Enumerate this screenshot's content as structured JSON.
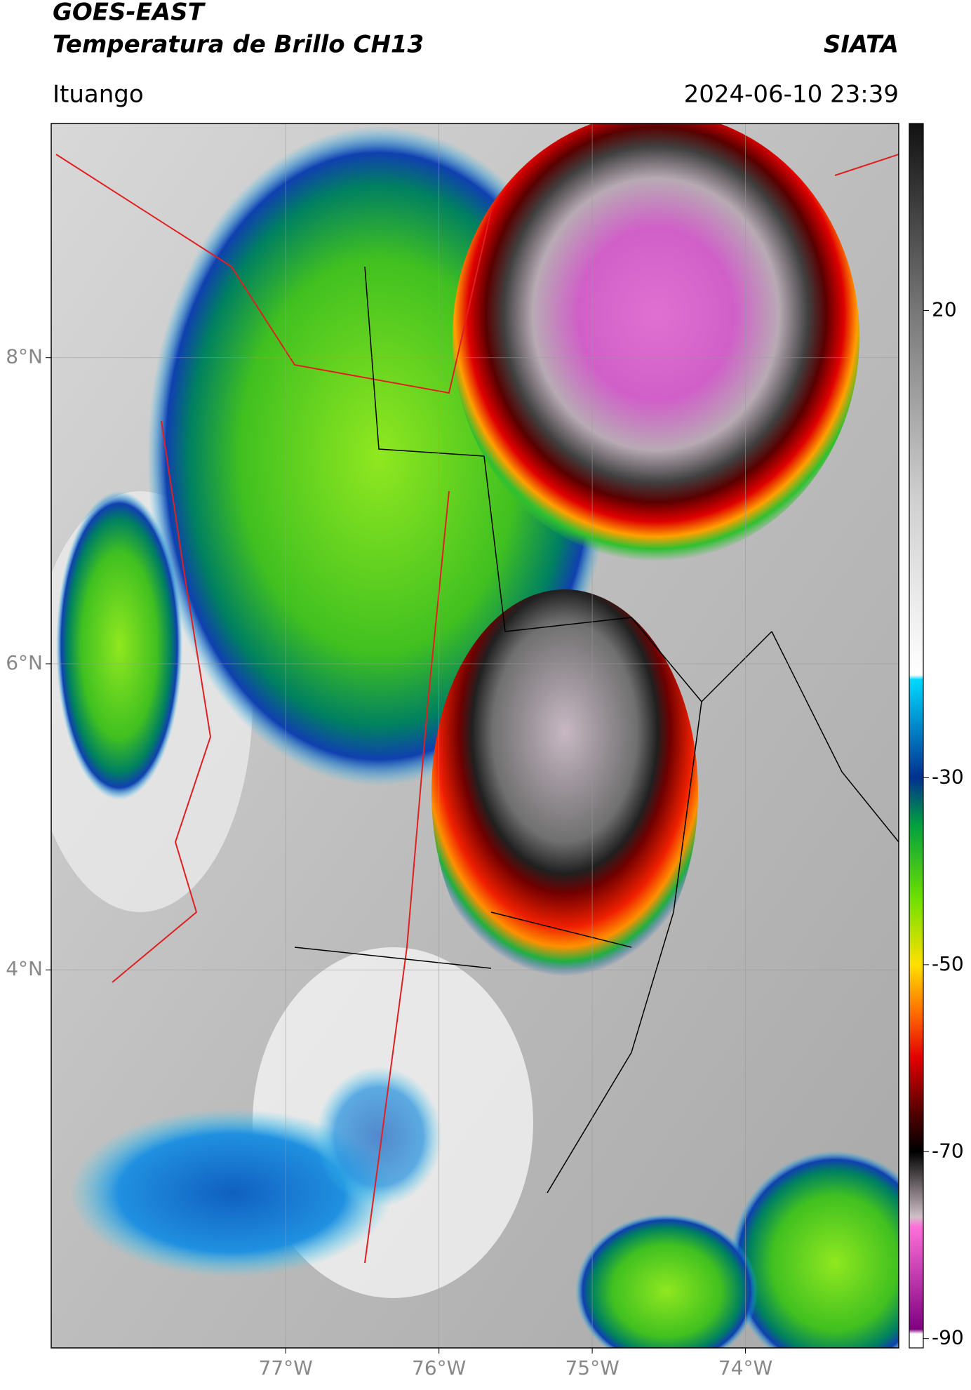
{
  "map": {
    "title": "GOES-EAST",
    "subtitle": "Temperatura de Brillo CH13",
    "source": "SIATA",
    "location": "Ituango",
    "datetime": "2024-06-10 23:39",
    "lonlim": [
      -78.53,
      -73.0
    ],
    "latlim": [
      1.53,
      9.53
    ],
    "lonticks": [
      {
        "value": -77,
        "label": "77°W"
      },
      {
        "value": -76,
        "label": "76°W"
      },
      {
        "value": -75,
        "label": "75°W"
      },
      {
        "value": -74,
        "label": "74°W"
      }
    ],
    "latticks": [
      {
        "value": 8,
        "label": "8°N"
      },
      {
        "value": 6,
        "label": "6°N"
      },
      {
        "value": 4,
        "label": "4°N"
      }
    ],
    "grid": true,
    "colorbar": {
      "lim": [
        -91,
        40
      ],
      "ticks": [
        20,
        -30,
        -50,
        -70,
        -90
      ],
      "stops": [
        {
          "value": 40,
          "color": "#111111"
        },
        {
          "value": 20,
          "color": "#777777"
        },
        {
          "value": 0,
          "color": "#cfcfcf"
        },
        {
          "value": -19,
          "color": "#ffffff"
        },
        {
          "value": -19.5,
          "color": "#00d8ff"
        },
        {
          "value": -30,
          "color": "#003090"
        },
        {
          "value": -35,
          "color": "#00a040"
        },
        {
          "value": -43,
          "color": "#70e000"
        },
        {
          "value": -50,
          "color": "#ffe000"
        },
        {
          "value": -55,
          "color": "#ff7000"
        },
        {
          "value": -60,
          "color": "#e00000"
        },
        {
          "value": -66,
          "color": "#500000"
        },
        {
          "value": -70,
          "color": "#000000"
        },
        {
          "value": -77,
          "color": "#d0c0c8"
        },
        {
          "value": -78,
          "color": "#ff70d8"
        },
        {
          "value": -89,
          "color": "#800080"
        },
        {
          "value": -89.5,
          "color": "#ffffff"
        },
        {
          "value": -91,
          "color": "#ffffff"
        }
      ]
    }
  }
}
